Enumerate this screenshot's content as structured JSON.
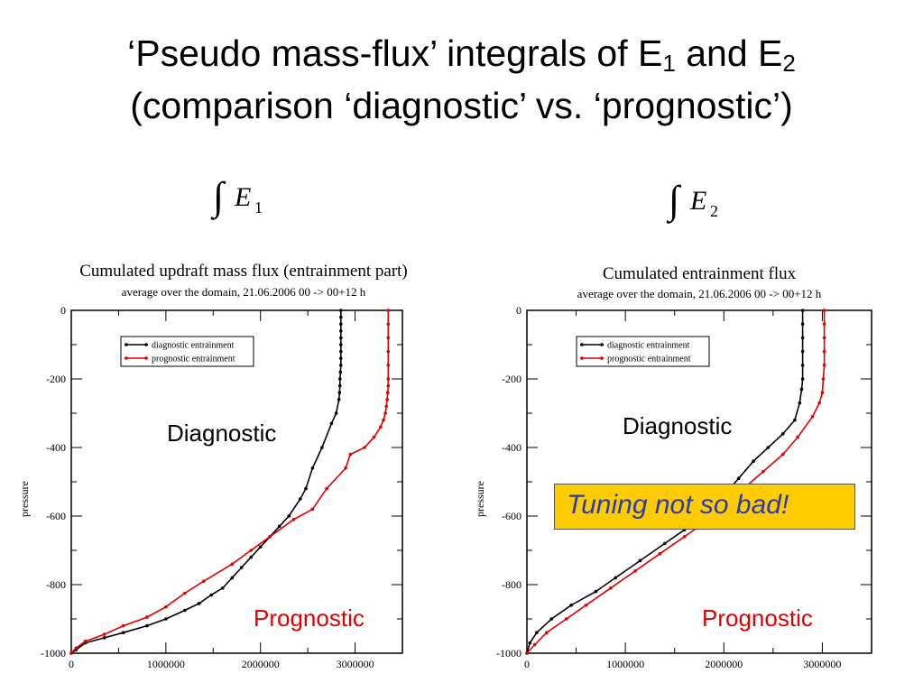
{
  "slide": {
    "title_line1_prefix": "‘Pseudo mass-flux’ integrals of E",
    "title_sub1": "1",
    "title_mid": " and E",
    "title_sub2": "2",
    "title_line2": "(comparison ‘diagnostic’ vs. ‘prognostic’)",
    "integral1": {
      "symbol": "∫",
      "var": "E",
      "sub": "1"
    },
    "integral2": {
      "symbol": "∫",
      "var": "E",
      "sub": "2"
    },
    "callout_text": "Tuning not so bad!",
    "callout_color": "#ffcc00",
    "callout_text_color": "#2e3ba8"
  },
  "chart_data": [
    {
      "type": "line",
      "title": "Cumulated updraft mass flux (entrainment part)",
      "subtitle": "average over the domain, 21.06.2006 00 -> 00+12 h",
      "xlabel": "",
      "ylabel": "pressure",
      "xlim": [
        0,
        3500000
      ],
      "ylim": [
        -1000,
        0
      ],
      "xticks": [
        "0",
        "1000000",
        "2000000",
        "3000000"
      ],
      "yticks": [
        "0",
        "-200",
        "-400",
        "-600",
        "-800",
        "-1000"
      ],
      "legend": {
        "position": "top-left",
        "entries": [
          "diagnostic entrainment",
          "prognostic entrainment"
        ]
      },
      "annotations": {
        "diagnostic": "Diagnostic",
        "prognostic": "Prognostic"
      },
      "series": [
        {
          "name": "diagnostic entrainment",
          "color": "#000000",
          "x": [
            2850000,
            2850000,
            2850000,
            2850000,
            2850000,
            2850000,
            2850000,
            2850000,
            2850000,
            2845000,
            2840000,
            2840000,
            2835000,
            2830000,
            2800000,
            2750000,
            2650000,
            2550000,
            2480000,
            2420000,
            2300000,
            2200000,
            2100000,
            2000000,
            1900000,
            1800000,
            1700000,
            1600000,
            1480000,
            1350000,
            1200000,
            1000000,
            800000,
            550000,
            350000,
            150000,
            50000,
            0
          ],
          "y": [
            0,
            -20,
            -40,
            -60,
            -80,
            -100,
            -120,
            -140,
            -160,
            -180,
            -200,
            -220,
            -240,
            -260,
            -300,
            -330,
            -400,
            -460,
            -520,
            -550,
            -600,
            -630,
            -660,
            -690,
            -720,
            -750,
            -780,
            -810,
            -830,
            -855,
            -875,
            -900,
            -920,
            -940,
            -955,
            -970,
            -990,
            -1000
          ]
        },
        {
          "name": "prognostic entrainment",
          "color": "#e00000",
          "x": [
            3350000,
            3350000,
            3350000,
            3350000,
            3350000,
            3350000,
            3350000,
            3345000,
            3340000,
            3330000,
            3320000,
            3300000,
            3270000,
            3200000,
            3100000,
            2950000,
            2900000,
            2700000,
            2550000,
            2350000,
            2100000,
            1900000,
            1700000,
            1400000,
            1200000,
            1000000,
            800000,
            550000,
            350000,
            150000,
            50000,
            0
          ],
          "y": [
            0,
            -40,
            -80,
            -120,
            -160,
            -200,
            -220,
            -240,
            -260,
            -280,
            -300,
            -320,
            -340,
            -370,
            -400,
            -420,
            -460,
            -520,
            -580,
            -610,
            -660,
            -700,
            -740,
            -790,
            -825,
            -865,
            -895,
            -920,
            -945,
            -965,
            -985,
            -1000
          ]
        }
      ]
    },
    {
      "type": "line",
      "title": "Cumulated entrainment flux",
      "subtitle": "average over the domain, 21.06.2006 00 -> 00+12 h",
      "xlabel": "",
      "ylabel": "pressure",
      "xlim": [
        0,
        3500000
      ],
      "ylim": [
        -1000,
        0
      ],
      "xticks": [
        "0",
        "1000000",
        "2000000",
        "3000000"
      ],
      "yticks": [
        "0",
        "-200",
        "-400",
        "-600",
        "-800",
        "-1000"
      ],
      "legend": {
        "position": "top-left",
        "entries": [
          "diagnostic entrainment",
          "prognostic entrainment"
        ]
      },
      "annotations": {
        "diagnostic": "Diagnostic",
        "prognostic": "Prognostic"
      },
      "series": [
        {
          "name": "diagnostic entrainment",
          "color": "#000000",
          "x": [
            2800000,
            2800000,
            2800000,
            2800000,
            2800000,
            2800000,
            2790000,
            2770000,
            2720000,
            2600000,
            2450000,
            2300000,
            2150000,
            2000000,
            1800000,
            1600000,
            1400000,
            1150000,
            900000,
            700000,
            450000,
            250000,
            100000,
            30000,
            0
          ],
          "y": [
            0,
            -40,
            -80,
            -120,
            -160,
            -200,
            -230,
            -270,
            -320,
            -360,
            -400,
            -440,
            -490,
            -540,
            -590,
            -640,
            -680,
            -730,
            -780,
            -820,
            -860,
            -900,
            -940,
            -970,
            -1000
          ]
        },
        {
          "name": "prognostic entrainment",
          "color": "#e00000",
          "x": [
            3020000,
            3020000,
            3020000,
            3020000,
            3020000,
            3010000,
            3000000,
            2970000,
            2900000,
            2750000,
            2600000,
            2400000,
            2200000,
            2000000,
            1800000,
            1600000,
            1350000,
            1100000,
            850000,
            600000,
            400000,
            200000,
            80000,
            0
          ],
          "y": [
            0,
            -40,
            -80,
            -120,
            -160,
            -200,
            -240,
            -270,
            -310,
            -370,
            -420,
            -470,
            -520,
            -570,
            -620,
            -660,
            -710,
            -760,
            -810,
            -860,
            -900,
            -940,
            -975,
            -1000
          ]
        }
      ]
    }
  ]
}
